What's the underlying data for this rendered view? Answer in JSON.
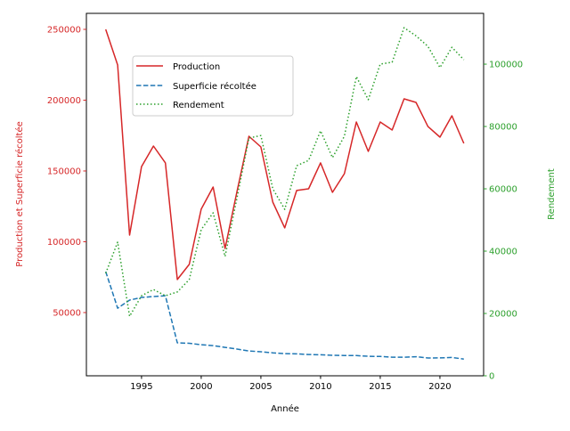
{
  "chart_data": {
    "type": "line",
    "xlabel": "Année",
    "ylabel_left": "Production et Superficie récoltée",
    "ylabel_right": "Rendement",
    "xlim": [
      1990.38,
      2023.66
    ],
    "ylim_left": [
      5350,
      261300
    ],
    "ylim_right": [
      0,
      116300
    ],
    "xticks": [
      1995,
      2000,
      2005,
      2010,
      2015,
      2020
    ],
    "yticks_left": [
      50000,
      100000,
      150000,
      200000,
      250000
    ],
    "yticks_right": [
      0,
      20000,
      40000,
      60000,
      80000,
      100000
    ],
    "grid": false,
    "legend_position": "upper-left",
    "colors": {
      "left_axis": "#d62728",
      "right_axis": "#2ca02c"
    },
    "x": [
      1992,
      1993,
      1994,
      1995,
      1996,
      1997,
      1998,
      1999,
      2000,
      2001,
      2002,
      2003,
      2004,
      2005,
      2006,
      2007,
      2008,
      2009,
      2010,
      2011,
      2012,
      2013,
      2014,
      2015,
      2016,
      2017,
      2018,
      2019,
      2020,
      2021,
      2022
    ],
    "series": [
      {
        "name": "Production",
        "axis": "left",
        "color": "#d62728",
        "style": "solid",
        "values": [
          250000,
          224800,
          104700,
          153100,
          167600,
          155700,
          73300,
          84000,
          123000,
          138700,
          95300,
          135500,
          174500,
          167000,
          128000,
          109800,
          136200,
          137400,
          155700,
          134900,
          148100,
          184600,
          163800,
          184600,
          178900,
          200900,
          198400,
          181400,
          173900,
          189000,
          169500
        ]
      },
      {
        "name": "Superficie récoltée",
        "axis": "left",
        "color": "#1f77b4",
        "style": "dashed",
        "values": [
          78900,
          53100,
          58800,
          60700,
          61300,
          61900,
          28600,
          28300,
          27300,
          26700,
          25400,
          24200,
          22900,
          22300,
          21600,
          21000,
          20800,
          20400,
          20200,
          19800,
          19700,
          19600,
          19100,
          19000,
          18500,
          18500,
          18800,
          17900,
          18000,
          18300,
          17200
        ]
      },
      {
        "name": "Rendement",
        "axis": "right",
        "color": "#2ca02c",
        "style": "dotted",
        "values": [
          32900,
          42900,
          19100,
          25700,
          27700,
          25700,
          26900,
          30900,
          46900,
          52300,
          38300,
          57100,
          76300,
          77100,
          60000,
          53400,
          67400,
          69100,
          78600,
          70000,
          76900,
          96000,
          88600,
          100000,
          100600,
          111700,
          109100,
          105700,
          98900,
          105400,
          101400
        ]
      }
    ]
  }
}
